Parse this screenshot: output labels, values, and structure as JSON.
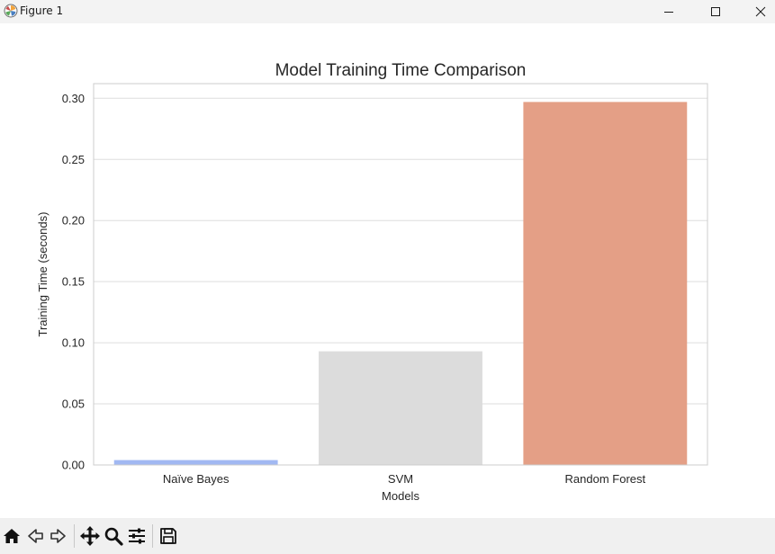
{
  "window": {
    "title": "Figure 1",
    "controls": [
      "minimize",
      "maximize",
      "close"
    ]
  },
  "chart_data": {
    "type": "bar",
    "title": "Model Training Time Comparison",
    "xlabel": "Models",
    "ylabel": "Training Time (seconds)",
    "categories": [
      "Naïve Bayes",
      "SVM",
      "Random Forest"
    ],
    "values": [
      0.004,
      0.093,
      0.297
    ],
    "colors": [
      "#a1b8f2",
      "#dcdcdc",
      "#e49f86"
    ],
    "ylim": [
      0,
      0.312
    ],
    "yticks": [
      0.0,
      0.05,
      0.1,
      0.15,
      0.2,
      0.25,
      0.3
    ],
    "ytick_labels": [
      "0.00",
      "0.05",
      "0.10",
      "0.15",
      "0.20",
      "0.25",
      "0.30"
    ],
    "grid": true,
    "legend": "none"
  },
  "toolbar": {
    "icons": [
      "home-icon",
      "back-arrow-icon",
      "forward-arrow-icon",
      "pan-icon",
      "zoom-icon",
      "configure-subplots-icon",
      "save-icon"
    ]
  },
  "colors": {
    "titlebar_bg": "#f3f3f3",
    "toolbar_bg": "#f0f0f0",
    "grid": "#dddddd",
    "axes_frame": "#cccccc"
  }
}
